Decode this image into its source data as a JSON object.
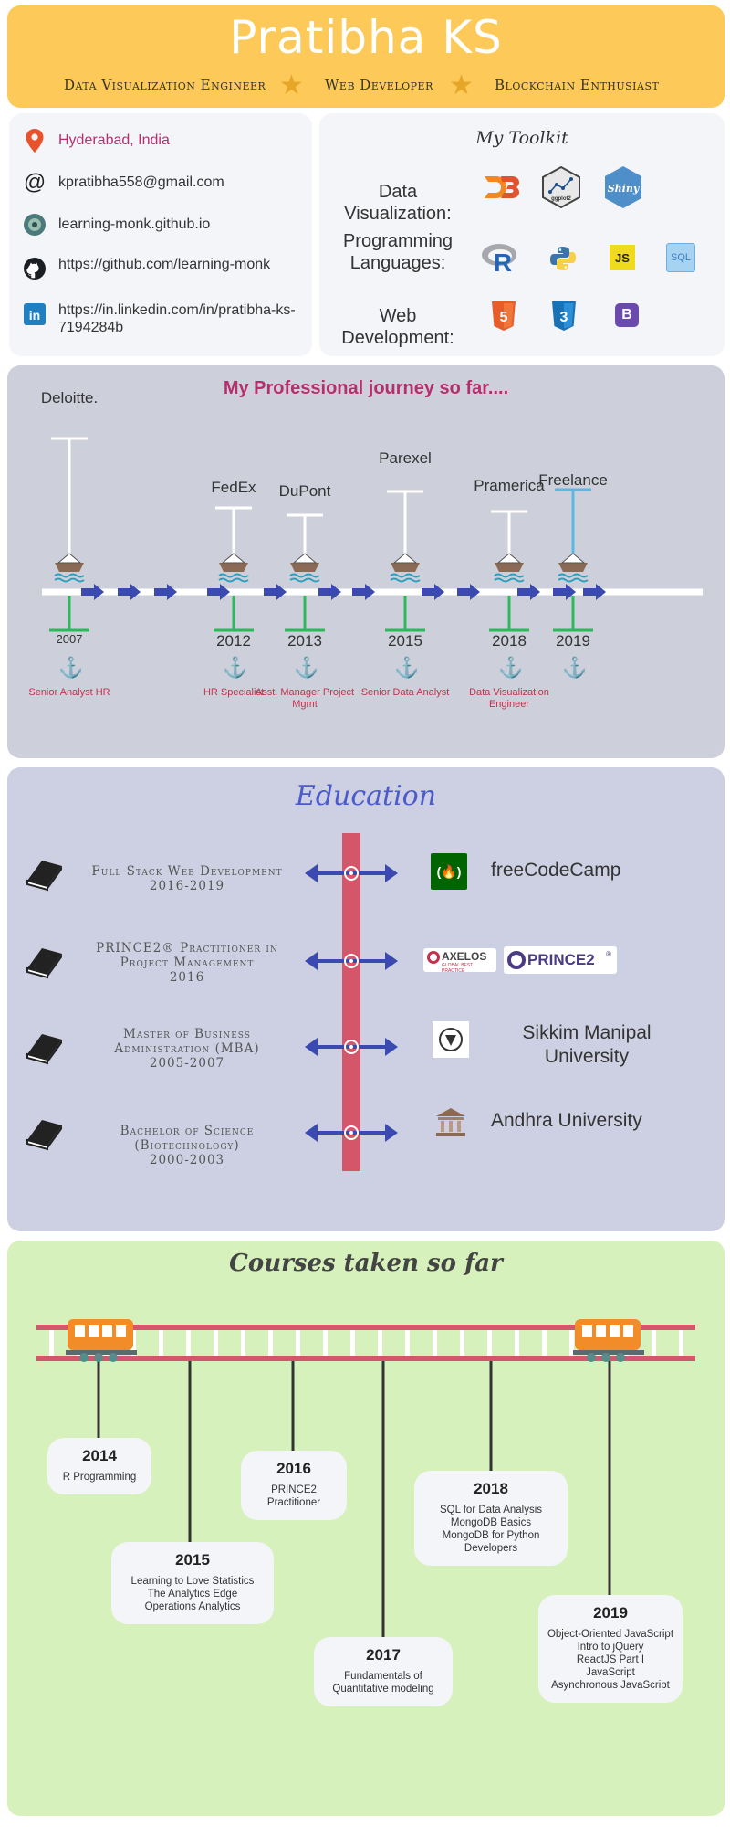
{
  "header": {
    "name": "Pratibha KS",
    "roles": [
      "Data Visualization Engineer",
      "Web Developer",
      "Blockchain Enthusiast"
    ],
    "accent": "#fdc958"
  },
  "contact": {
    "location": "Hyderabad, India",
    "email": "kpratibha558@gmail.com",
    "website": "learning-monk.github.io",
    "github": "https://github.com/learning-monk",
    "linkedin": "https://in.linkedin.com/in/pratibha-ks-7194284b",
    "location_color": "#b52e6e"
  },
  "toolkit": {
    "title": "My Toolkit",
    "rows": [
      {
        "label": "Data Visualization:",
        "icons": [
          "d3-icon",
          "ggplot2-icon",
          "shiny-icon"
        ],
        "icon_text": [
          "D3",
          "ggplot2",
          "Shiny"
        ]
      },
      {
        "label": "Programming Languages:",
        "icons": [
          "r-icon",
          "python-icon",
          "js-icon",
          "sql-icon"
        ],
        "icon_text": [
          "R",
          "",
          "JS",
          "SQL"
        ]
      },
      {
        "label": "Web Development:",
        "icons": [
          "html5-icon",
          "css3-icon",
          "bootstrap-icon"
        ],
        "icon_text": [
          "5",
          "3",
          "B"
        ]
      }
    ]
  },
  "journey": {
    "title": "My Professional journey so far....",
    "items": [
      {
        "company": "Deloitte.",
        "year": "2007",
        "role": "Senior Analyst HR"
      },
      {
        "company": "FedEx",
        "year": "2012",
        "role": "HR Specialist"
      },
      {
        "company": "DuPont",
        "year": "2013",
        "role": "Asst. Manager Project Mgmt"
      },
      {
        "company": "Parexel",
        "year": "2015",
        "role": "Senior Data Analyst"
      },
      {
        "company": "Pramerica",
        "year": "2018",
        "role": "Data Visualization Engineer"
      },
      {
        "company": "Freelance",
        "year": "2019",
        "role": ""
      }
    ]
  },
  "education": {
    "title": "Education",
    "items": [
      {
        "program": "Full Stack Web Development",
        "years": "2016-2019",
        "institution": "freeCodeCamp"
      },
      {
        "program": "PRINCE2® Practitioner in Project Management",
        "years": "2016",
        "institution": ""
      },
      {
        "program": "Master of Business Administration (MBA)",
        "years": "2005-2007",
        "institution": "Sikkim Manipal University"
      },
      {
        "program": "Bachelor of Science (Biotechnology)",
        "years": "2000-2003",
        "institution": "Andhra University"
      }
    ],
    "logos": {
      "axelos": "AXELOS",
      "axelos_sub": "GLOBAL BEST PRACTICE",
      "prince2": "PRINCE2",
      "prince2_mark": "®"
    }
  },
  "courses": {
    "title": "Courses taken so far",
    "items": [
      {
        "year": "2014",
        "courses": [
          "R Programming"
        ]
      },
      {
        "year": "2015",
        "courses": [
          "Learning to Love Statistics",
          "The Analytics Edge",
          "Operations Analytics"
        ]
      },
      {
        "year": "2016",
        "courses": [
          "PRINCE2",
          "Practitioner"
        ]
      },
      {
        "year": "2017",
        "courses": [
          "Fundamentals of",
          "Quantitative modeling"
        ]
      },
      {
        "year": "2018",
        "courses": [
          "SQL for Data Analysis",
          "MongoDB Basics",
          "MongoDB for Python",
          "Developers"
        ]
      },
      {
        "year": "2019",
        "courses": [
          "Object-Oriented JavaScript",
          "Intro to jQuery",
          "ReactJS Part I",
          "JavaScript",
          "Asynchronous JavaScript"
        ]
      }
    ]
  }
}
